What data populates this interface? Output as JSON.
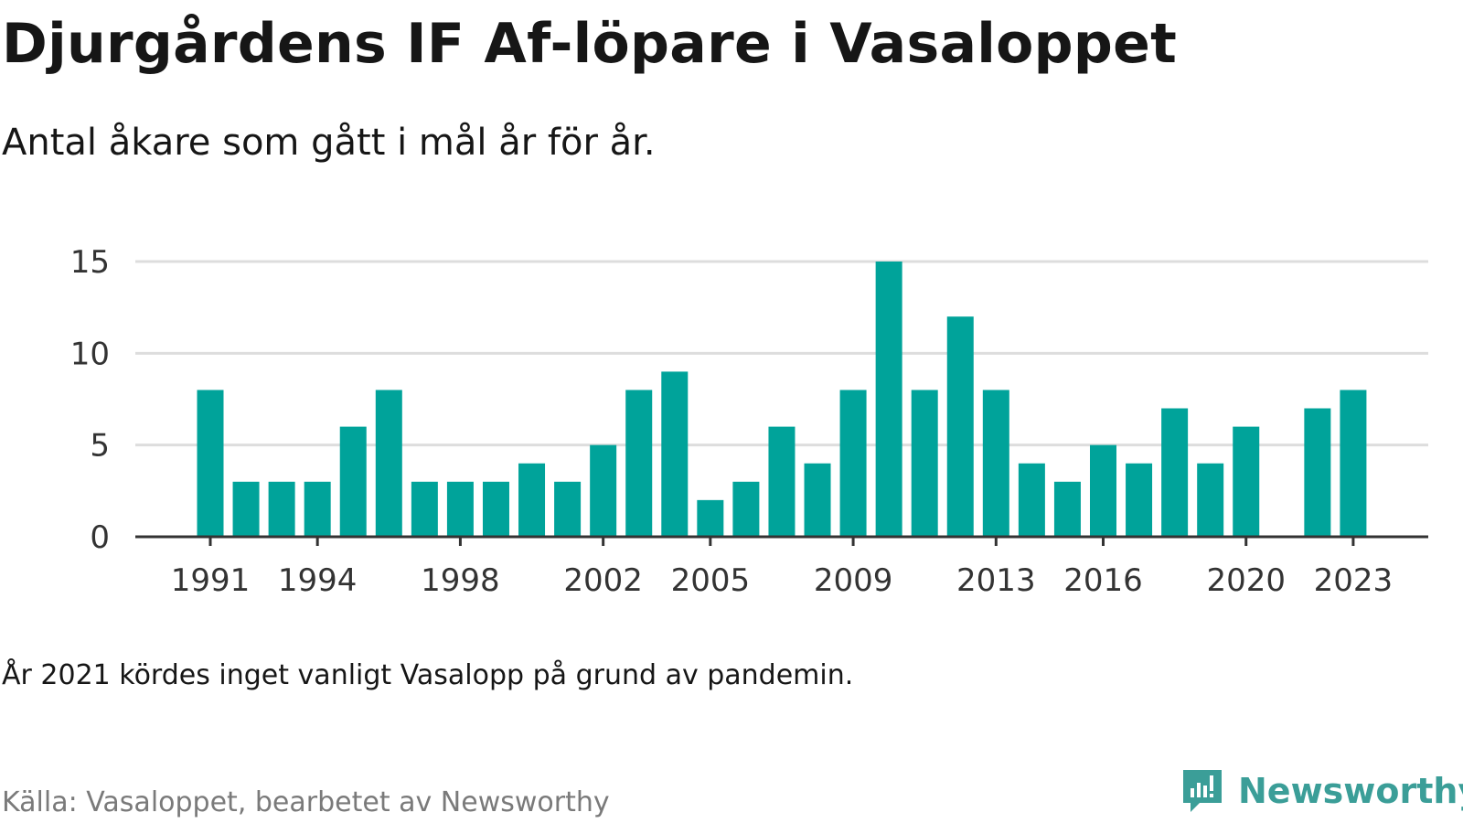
{
  "title": "Djurgårdens IF Af-löpare i Vasaloppet",
  "subtitle": "Antal åkare som gått i mål år för år.",
  "note": "År 2021 kördes inget vanligt Vasalopp på grund av pandemin.",
  "source": "Källa: Vasaloppet, bearbetet av Newsworthy",
  "logo": {
    "text": "Newsworthy",
    "icon": "newsworthy-chart-logo-icon",
    "color": "#3b9e98"
  },
  "colors": {
    "bar": "#00a39a",
    "grid": "#dddddd",
    "axis": "#333333",
    "tick_text": "#333333"
  },
  "chart_data": {
    "type": "bar",
    "title": "Djurgårdens IF Af-löpare i Vasaloppet",
    "subtitle": "Antal åkare som gått i mål år för år.",
    "xlabel": "",
    "ylabel": "",
    "categories": [
      1991,
      1992,
      1993,
      1994,
      1995,
      1996,
      1997,
      1998,
      1999,
      2000,
      2001,
      2002,
      2003,
      2004,
      2005,
      2006,
      2007,
      2008,
      2009,
      2010,
      2011,
      2012,
      2013,
      2014,
      2015,
      2016,
      2017,
      2018,
      2019,
      2020,
      2021,
      2022,
      2023
    ],
    "values": [
      8,
      3,
      3,
      3,
      6,
      8,
      3,
      3,
      3,
      4,
      3,
      5,
      8,
      9,
      2,
      3,
      6,
      4,
      8,
      15,
      8,
      12,
      8,
      4,
      3,
      5,
      4,
      7,
      4,
      6,
      null,
      7,
      8
    ],
    "x_tick_labels": [
      "1991",
      "1994",
      "1998",
      "2002",
      "2005",
      "2009",
      "2013",
      "2016",
      "2020",
      "2023"
    ],
    "y_ticks": [
      0,
      5,
      10,
      15
    ],
    "ylim": [
      0,
      15
    ],
    "grid": true,
    "legend": "none"
  }
}
